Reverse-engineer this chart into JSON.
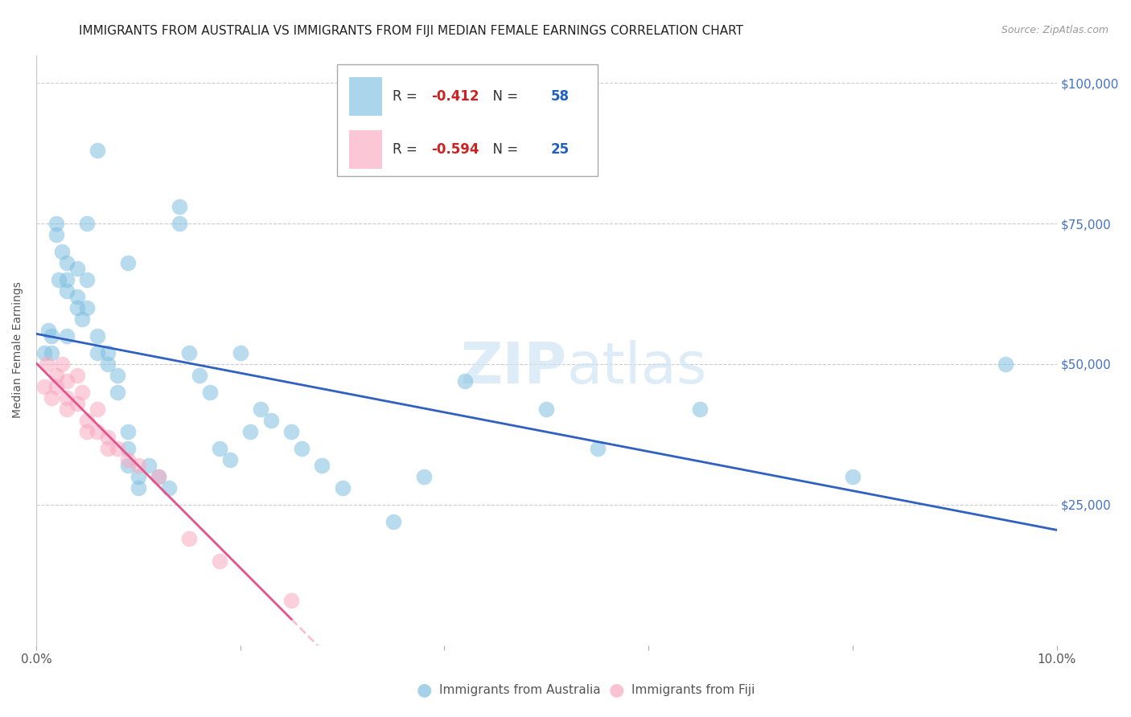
{
  "title": "IMMIGRANTS FROM AUSTRALIA VS IMMIGRANTS FROM FIJI MEDIAN FEMALE EARNINGS CORRELATION CHART",
  "source": "Source: ZipAtlas.com",
  "ylabel": "Median Female Earnings",
  "xlim": [
    0.0,
    0.1
  ],
  "ylim": [
    0,
    105000
  ],
  "yticks": [
    0,
    25000,
    50000,
    75000,
    100000
  ],
  "xticks": [
    0.0,
    0.02,
    0.04,
    0.06,
    0.08,
    0.1
  ],
  "xtick_labels": [
    "0.0%",
    "",
    "",
    "",
    "",
    "10.0%"
  ],
  "ytick_right_labels": [
    "",
    "$25,000",
    "$50,000",
    "$75,000",
    "$100,000"
  ],
  "australia_color": "#7fbfdf",
  "fiji_color": "#f9a8c0",
  "australia_line_color": "#3060c0",
  "fiji_line_color": "#e8508a",
  "R_australia": "-0.412",
  "N_australia": "58",
  "R_fiji": "-0.594",
  "N_fiji": "25",
  "watermark": "ZIPatlas",
  "australia_points": [
    [
      0.0008,
      52000
    ],
    [
      0.0012,
      56000
    ],
    [
      0.0015,
      55000
    ],
    [
      0.0015,
      52000
    ],
    [
      0.002,
      75000
    ],
    [
      0.002,
      73000
    ],
    [
      0.0022,
      65000
    ],
    [
      0.0025,
      70000
    ],
    [
      0.003,
      68000
    ],
    [
      0.003,
      65000
    ],
    [
      0.003,
      63000
    ],
    [
      0.003,
      55000
    ],
    [
      0.004,
      67000
    ],
    [
      0.004,
      62000
    ],
    [
      0.004,
      60000
    ],
    [
      0.0045,
      58000
    ],
    [
      0.005,
      75000
    ],
    [
      0.005,
      65000
    ],
    [
      0.005,
      60000
    ],
    [
      0.006,
      88000
    ],
    [
      0.006,
      55000
    ],
    [
      0.006,
      52000
    ],
    [
      0.007,
      52000
    ],
    [
      0.007,
      50000
    ],
    [
      0.008,
      48000
    ],
    [
      0.008,
      45000
    ],
    [
      0.009,
      68000
    ],
    [
      0.009,
      38000
    ],
    [
      0.009,
      35000
    ],
    [
      0.009,
      32000
    ],
    [
      0.01,
      30000
    ],
    [
      0.01,
      28000
    ],
    [
      0.011,
      32000
    ],
    [
      0.012,
      30000
    ],
    [
      0.013,
      28000
    ],
    [
      0.014,
      78000
    ],
    [
      0.014,
      75000
    ],
    [
      0.015,
      52000
    ],
    [
      0.016,
      48000
    ],
    [
      0.017,
      45000
    ],
    [
      0.018,
      35000
    ],
    [
      0.019,
      33000
    ],
    [
      0.02,
      52000
    ],
    [
      0.021,
      38000
    ],
    [
      0.022,
      42000
    ],
    [
      0.023,
      40000
    ],
    [
      0.025,
      38000
    ],
    [
      0.026,
      35000
    ],
    [
      0.028,
      32000
    ],
    [
      0.03,
      28000
    ],
    [
      0.035,
      22000
    ],
    [
      0.038,
      30000
    ],
    [
      0.042,
      47000
    ],
    [
      0.05,
      42000
    ],
    [
      0.055,
      35000
    ],
    [
      0.065,
      42000
    ],
    [
      0.08,
      30000
    ],
    [
      0.095,
      50000
    ]
  ],
  "fiji_points": [
    [
      0.0008,
      46000
    ],
    [
      0.001,
      50000
    ],
    [
      0.0015,
      44000
    ],
    [
      0.002,
      48000
    ],
    [
      0.002,
      46000
    ],
    [
      0.0025,
      50000
    ],
    [
      0.003,
      47000
    ],
    [
      0.003,
      44000
    ],
    [
      0.003,
      42000
    ],
    [
      0.004,
      48000
    ],
    [
      0.004,
      43000
    ],
    [
      0.0045,
      45000
    ],
    [
      0.005,
      40000
    ],
    [
      0.005,
      38000
    ],
    [
      0.006,
      42000
    ],
    [
      0.006,
      38000
    ],
    [
      0.007,
      37000
    ],
    [
      0.007,
      35000
    ],
    [
      0.008,
      35000
    ],
    [
      0.009,
      33000
    ],
    [
      0.01,
      32000
    ],
    [
      0.012,
      30000
    ],
    [
      0.015,
      19000
    ],
    [
      0.018,
      15000
    ],
    [
      0.025,
      8000
    ]
  ],
  "background_color": "#ffffff",
  "grid_color": "#cccccc",
  "right_axis_color": "#4472c4",
  "title_fontsize": 11,
  "axis_label_fontsize": 10,
  "tick_fontsize": 11,
  "source_fontsize": 9
}
